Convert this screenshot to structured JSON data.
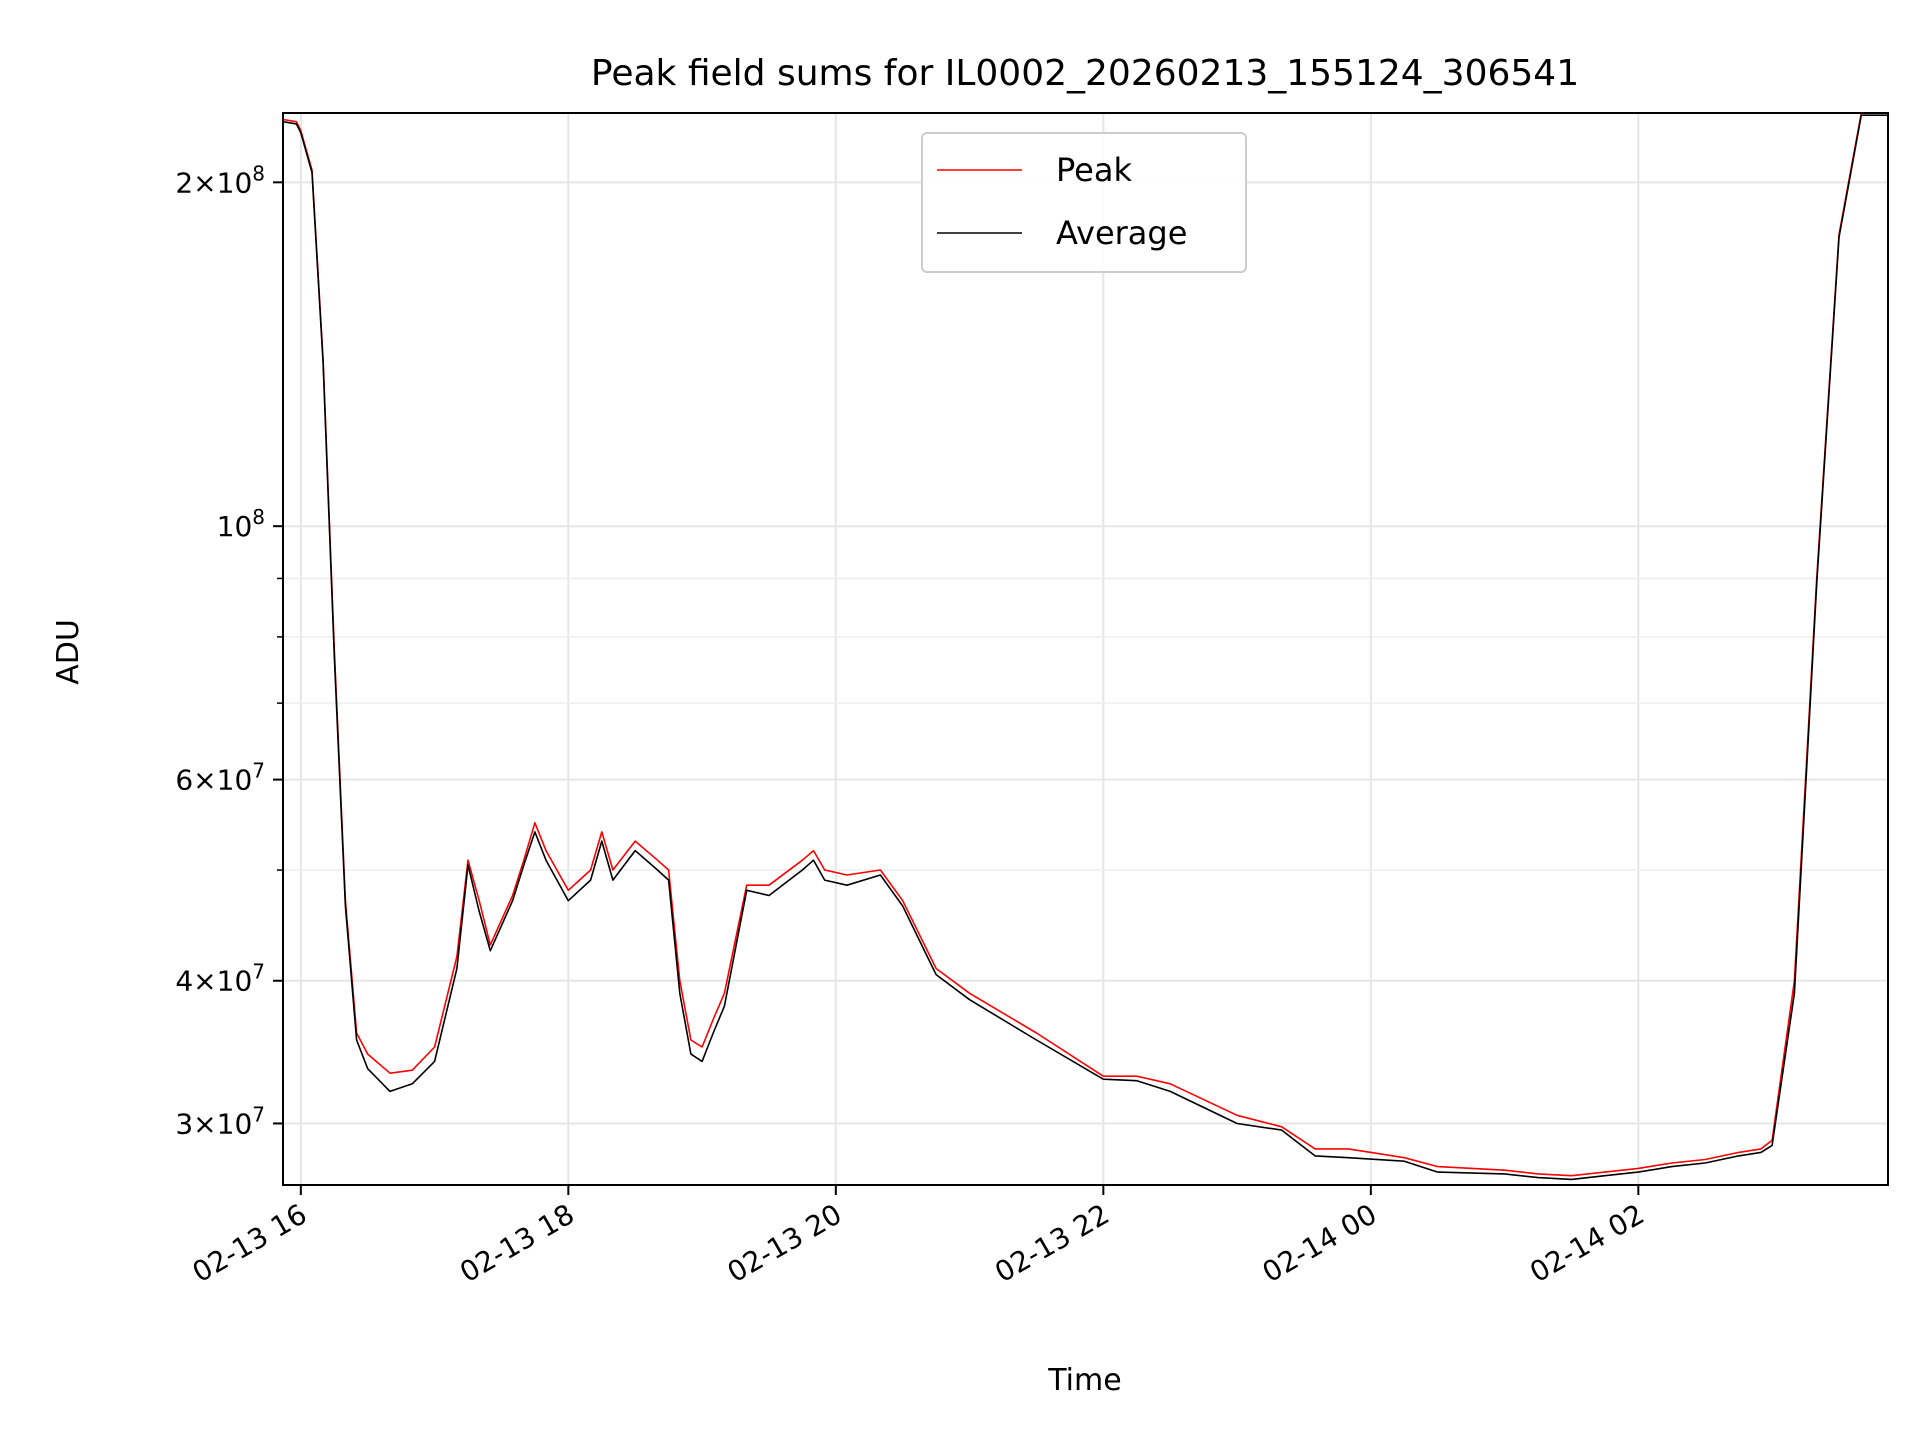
{
  "chart_data": {
    "type": "line",
    "title": "Peak field sums for IL0002_20260213_155124_306541",
    "xlabel": "Time",
    "ylabel": "ADU",
    "yscale": "log",
    "ylim": [
      26500000,
      230000000
    ],
    "xlim": [
      "2026-02-13 15:52",
      "2026-02-14 03:52"
    ],
    "grid": true,
    "legend_position": "top-center",
    "x_ticks": [
      {
        "t": "2026-02-13 16:00",
        "label": "02-13 16"
      },
      {
        "t": "2026-02-13 18:00",
        "label": "02-13 18"
      },
      {
        "t": "2026-02-13 20:00",
        "label": "02-13 20"
      },
      {
        "t": "2026-02-13 22:00",
        "label": "02-13 22"
      },
      {
        "t": "2026-02-14 00:00",
        "label": "02-14 00"
      },
      {
        "t": "2026-02-14 02:00",
        "label": "02-14 02"
      }
    ],
    "y_ticks": [
      {
        "v": 30000000,
        "mant": "3",
        "exp": "7"
      },
      {
        "v": 40000000,
        "mant": "4",
        "exp": "7"
      },
      {
        "v": 60000000,
        "mant": "6",
        "exp": "7"
      },
      {
        "v": 100000000,
        "mant": "",
        "exp": "8"
      },
      {
        "v": 200000000,
        "mant": "2",
        "exp": "8"
      }
    ],
    "y_minor_ticks": [
      50000000,
      70000000,
      80000000,
      90000000
    ],
    "series": [
      {
        "name": "Peak",
        "color": "#ff0000",
        "x": [
          "2026-02-13 15:52",
          "2026-02-13 15:58",
          "2026-02-13 16:00",
          "2026-02-13 16:05",
          "2026-02-13 16:10",
          "2026-02-13 16:15",
          "2026-02-13 16:20",
          "2026-02-13 16:25",
          "2026-02-13 16:30",
          "2026-02-13 16:40",
          "2026-02-13 16:50",
          "2026-02-13 17:00",
          "2026-02-13 17:10",
          "2026-02-13 17:15",
          "2026-02-13 17:20",
          "2026-02-13 17:25",
          "2026-02-13 17:35",
          "2026-02-13 17:40",
          "2026-02-13 17:45",
          "2026-02-13 17:50",
          "2026-02-13 18:00",
          "2026-02-13 18:10",
          "2026-02-13 18:15",
          "2026-02-13 18:20",
          "2026-02-13 18:30",
          "2026-02-13 18:40",
          "2026-02-13 18:45",
          "2026-02-13 18:50",
          "2026-02-13 18:55",
          "2026-02-13 19:00",
          "2026-02-13 19:05",
          "2026-02-13 19:10",
          "2026-02-13 19:20",
          "2026-02-13 19:30",
          "2026-02-13 19:45",
          "2026-02-13 19:50",
          "2026-02-13 19:55",
          "2026-02-13 20:05",
          "2026-02-13 20:20",
          "2026-02-13 20:30",
          "2026-02-13 20:45",
          "2026-02-13 21:00",
          "2026-02-13 21:30",
          "2026-02-13 22:00",
          "2026-02-13 22:15",
          "2026-02-13 22:30",
          "2026-02-13 23:00",
          "2026-02-13 23:20",
          "2026-02-13 23:35",
          "2026-02-13 23:50",
          "2026-02-14 00:15",
          "2026-02-14 00:30",
          "2026-02-14 01:00",
          "2026-02-14 01:15",
          "2026-02-14 01:30",
          "2026-02-14 01:45",
          "2026-02-14 02:00",
          "2026-02-14 02:15",
          "2026-02-14 02:30",
          "2026-02-14 02:45",
          "2026-02-14 02:55",
          "2026-02-14 03:00",
          "2026-02-14 03:10",
          "2026-02-14 03:20",
          "2026-02-14 03:30",
          "2026-02-14 03:40",
          "2026-02-14 03:44",
          "2026-02-14 03:52"
        ],
        "y": [
          227000000,
          226000000,
          222000000,
          205000000,
          140000000,
          78000000,
          47000000,
          36000000,
          34500000,
          33200000,
          33400000,
          35000000,
          42000000,
          51000000,
          47000000,
          43000000,
          47500000,
          51000000,
          55000000,
          52000000,
          48000000,
          50000000,
          54000000,
          50000000,
          53000000,
          51000000,
          50000000,
          40000000,
          35500000,
          35000000,
          37000000,
          39000000,
          48500000,
          48500000,
          51000000,
          52000000,
          50000000,
          49500000,
          50000000,
          47000000,
          41000000,
          39000000,
          36000000,
          33000000,
          33000000,
          32500000,
          30500000,
          29800000,
          28500000,
          28500000,
          28000000,
          27500000,
          27300000,
          27100000,
          27000000,
          27200000,
          27400000,
          27700000,
          27900000,
          28300000,
          28500000,
          29000000,
          40000000,
          90000000,
          180000000,
          230000000,
          230000000,
          230000000
        ]
      },
      {
        "name": "Average",
        "color": "#000000",
        "x": [
          "2026-02-13 15:52",
          "2026-02-13 15:58",
          "2026-02-13 16:00",
          "2026-02-13 16:05",
          "2026-02-13 16:10",
          "2026-02-13 16:15",
          "2026-02-13 16:20",
          "2026-02-13 16:25",
          "2026-02-13 16:30",
          "2026-02-13 16:40",
          "2026-02-13 16:50",
          "2026-02-13 17:00",
          "2026-02-13 17:10",
          "2026-02-13 17:15",
          "2026-02-13 17:20",
          "2026-02-13 17:25",
          "2026-02-13 17:35",
          "2026-02-13 17:40",
          "2026-02-13 17:45",
          "2026-02-13 17:50",
          "2026-02-13 18:00",
          "2026-02-13 18:10",
          "2026-02-13 18:15",
          "2026-02-13 18:20",
          "2026-02-13 18:30",
          "2026-02-13 18:40",
          "2026-02-13 18:45",
          "2026-02-13 18:50",
          "2026-02-13 18:55",
          "2026-02-13 19:00",
          "2026-02-13 19:05",
          "2026-02-13 19:10",
          "2026-02-13 19:20",
          "2026-02-13 19:30",
          "2026-02-13 19:45",
          "2026-02-13 19:50",
          "2026-02-13 19:55",
          "2026-02-13 20:05",
          "2026-02-13 20:20",
          "2026-02-13 20:30",
          "2026-02-13 20:45",
          "2026-02-13 21:00",
          "2026-02-13 21:30",
          "2026-02-13 22:00",
          "2026-02-13 22:15",
          "2026-02-13 22:30",
          "2026-02-13 23:00",
          "2026-02-13 23:20",
          "2026-02-13 23:35",
          "2026-02-13 23:50",
          "2026-02-14 00:15",
          "2026-02-14 00:30",
          "2026-02-14 01:00",
          "2026-02-14 01:15",
          "2026-02-14 01:30",
          "2026-02-14 01:45",
          "2026-02-14 02:00",
          "2026-02-14 02:15",
          "2026-02-14 02:30",
          "2026-02-14 02:45",
          "2026-02-14 02:55",
          "2026-02-14 03:00",
          "2026-02-14 03:10",
          "2026-02-14 03:20",
          "2026-02-14 03:30",
          "2026-02-14 03:40",
          "2026-02-14 03:44",
          "2026-02-14 03:52"
        ],
        "y": [
          226000000,
          225000000,
          221000000,
          204000000,
          139000000,
          77000000,
          46500000,
          35500000,
          33500000,
          32000000,
          32500000,
          34000000,
          41000000,
          50500000,
          46000000,
          42500000,
          47000000,
          50500000,
          54000000,
          51000000,
          47000000,
          49000000,
          53000000,
          49000000,
          52000000,
          50000000,
          49000000,
          39000000,
          34500000,
          34000000,
          36000000,
          38000000,
          48000000,
          47500000,
          50000000,
          51000000,
          49000000,
          48500000,
          49500000,
          46500000,
          40500000,
          38500000,
          35500000,
          32800000,
          32700000,
          32000000,
          30000000,
          29600000,
          28100000,
          28000000,
          27800000,
          27200000,
          27100000,
          26900000,
          26800000,
          27000000,
          27200000,
          27500000,
          27700000,
          28100000,
          28300000,
          28700000,
          39000000,
          89000000,
          179000000,
          229000000,
          229000000,
          229000000
        ]
      }
    ]
  }
}
